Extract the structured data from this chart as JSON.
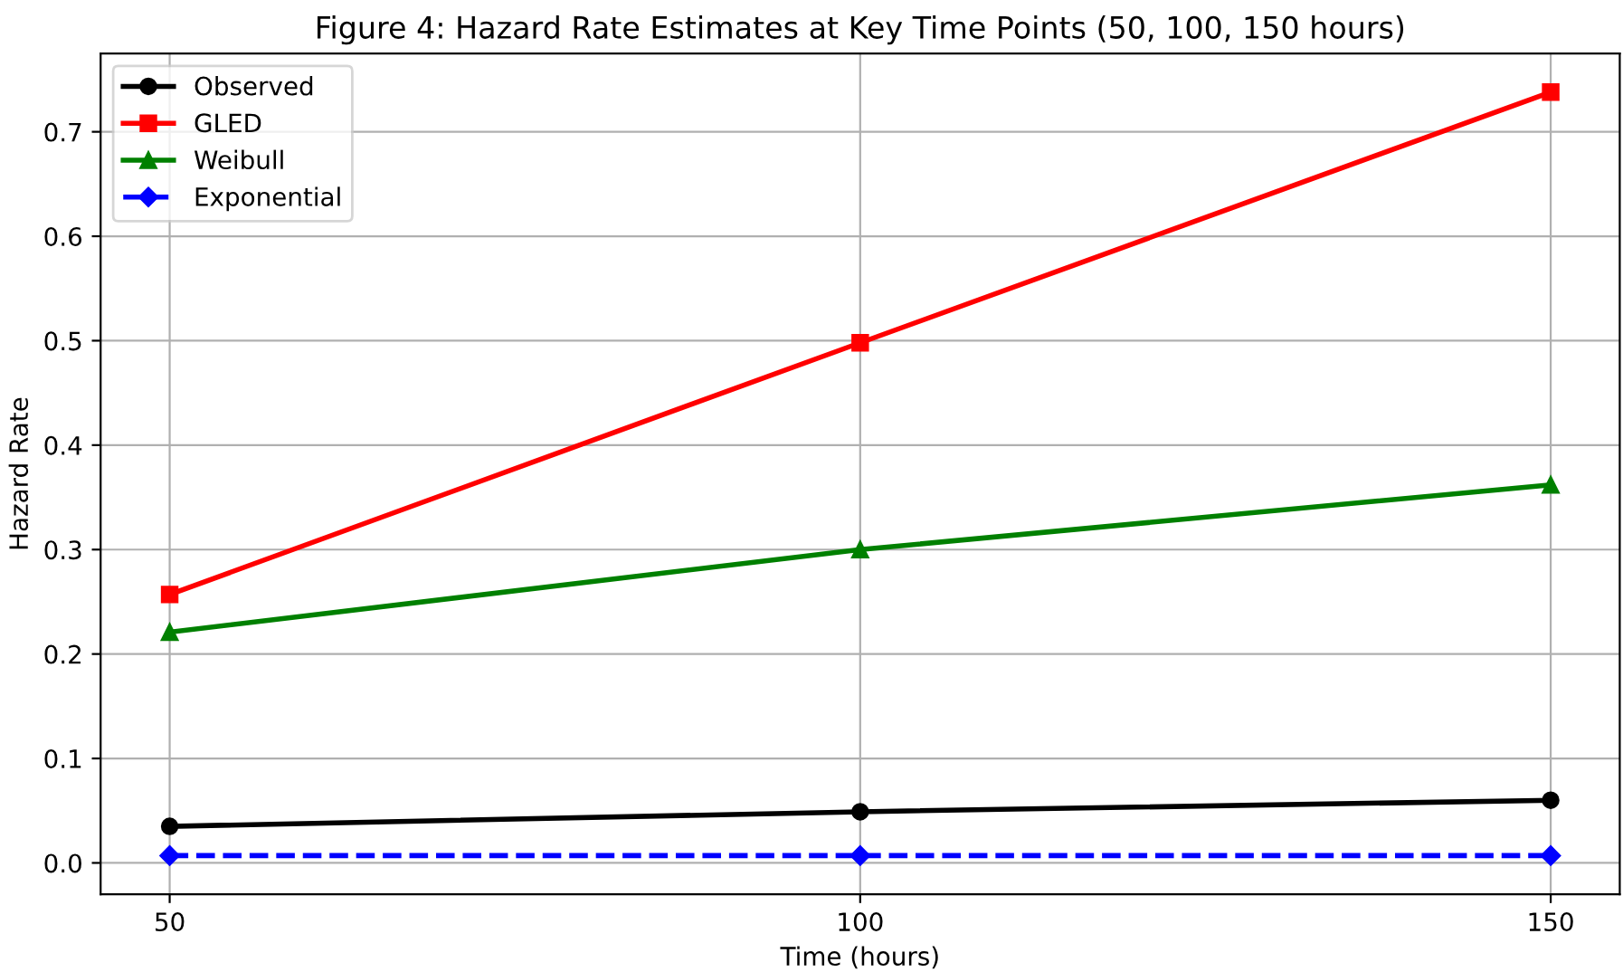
{
  "chart_data": {
    "type": "line",
    "title": "Figure 4: Hazard Rate Estimates at Key Time Points (50, 100, 150 hours)",
    "xlabel": "Time (hours)",
    "ylabel": "Hazard Rate",
    "x": [
      50,
      100,
      150
    ],
    "series": [
      {
        "name": "Observed",
        "color": "#000000",
        "values": [
          0.035,
          0.049,
          0.06
        ],
        "marker": "circle",
        "line_style": "solid"
      },
      {
        "name": "GLED",
        "color": "#ff0000",
        "values": [
          0.257,
          0.498,
          0.738
        ],
        "marker": "square",
        "line_style": "solid"
      },
      {
        "name": "Weibull",
        "color": "#008000",
        "values": [
          0.221,
          0.3,
          0.362
        ],
        "marker": "triangle",
        "line_style": "solid"
      },
      {
        "name": "Exponential",
        "color": "#0000ff",
        "values": [
          0.007,
          0.007,
          0.007
        ],
        "marker": "diamond",
        "line_style": "dashed"
      }
    ],
    "xlim": [
      45,
      155
    ],
    "ylim": [
      -0.03,
      0.775
    ],
    "xticks": [
      50,
      100,
      150
    ],
    "yticks": [
      {
        "value": 0,
        "label": "0.0"
      },
      0.1,
      0.2,
      0.3,
      0.4,
      0.5,
      0.6,
      0.7
    ],
    "grid": true,
    "legend": "top left"
  }
}
